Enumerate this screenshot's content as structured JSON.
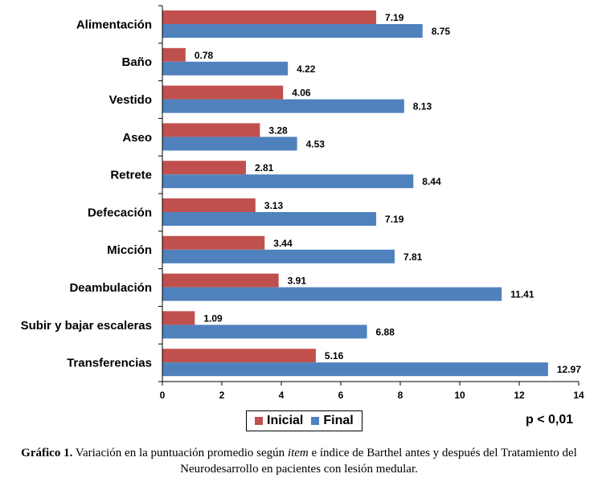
{
  "chart_data": {
    "type": "bar",
    "orientation": "horizontal",
    "categories": [
      "Alimentación",
      "Baño",
      "Vestido",
      "Aseo",
      "Retrete",
      "Defecación",
      "Micción",
      "Deambulación",
      "Subir y bajar escaleras",
      "Transferencias"
    ],
    "series": [
      {
        "name": "Inicial",
        "color": "#c0504d",
        "values": [
          7.19,
          0.78,
          4.06,
          3.28,
          2.81,
          3.13,
          3.44,
          3.91,
          1.09,
          5.16
        ],
        "labels": [
          "7.19",
          "0.78",
          "4.06",
          "3.28",
          "2.81",
          "3.13",
          "3.44",
          "3.91",
          "1.09",
          "5.16"
        ]
      },
      {
        "name": "Final",
        "color": "#4f81bd",
        "values": [
          8.75,
          4.22,
          8.13,
          4.53,
          8.44,
          7.19,
          7.81,
          11.41,
          6.88,
          12.97
        ],
        "labels": [
          "8.75",
          "4.22",
          "8.13",
          "4.53",
          "8.44",
          "7.19",
          "7.81",
          "11.41",
          "6.88",
          "12.97"
        ]
      }
    ],
    "xlim": [
      0,
      14
    ],
    "xticks": [
      "0",
      "2",
      "4",
      "6",
      "8",
      "10",
      "12",
      "14"
    ],
    "grid": false,
    "legend_position": "bottom",
    "annotation": "p < 0,01"
  },
  "caption": {
    "bold": "Gráfico 1.",
    "part1": " Variación en la puntuación promedio según ",
    "italic": "item",
    "part2": " e índice de Barthel antes y después del Tratamiento del Neurodesarrollo en pacientes con lesión medular."
  }
}
